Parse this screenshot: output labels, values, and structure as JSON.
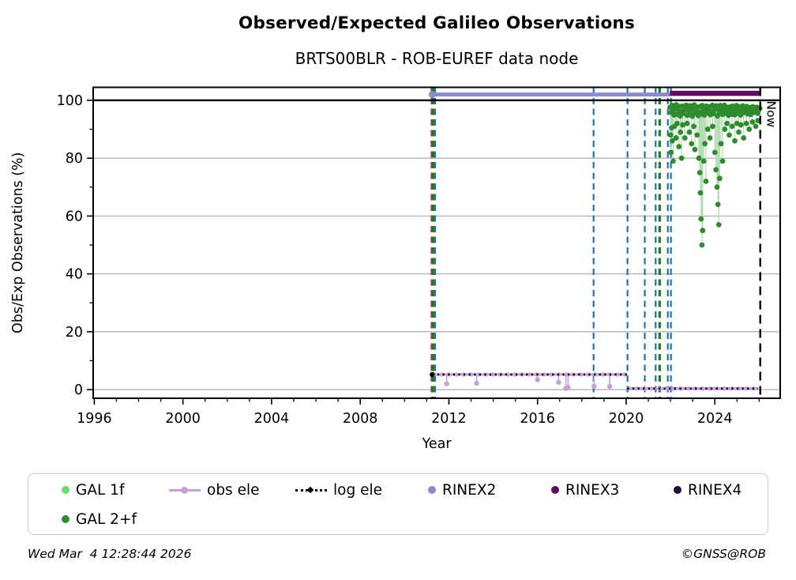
{
  "header": {
    "title": "Observed/Expected Galileo Observations",
    "subtitle": "BRTS00BLR - ROB-EUREF data node"
  },
  "chart_data": {
    "type": "line+scatter",
    "title": "Observed/Expected Galileo Observations",
    "subtitle": "BRTS00BLR - ROB-EUREF data node",
    "xlabel": "Year",
    "ylabel": "Obs/Exp Observations (%)",
    "xlim": [
      1995.95,
      2026.95
    ],
    "ylim": [
      -3,
      104.5
    ],
    "x_ticks": [
      1996,
      2000,
      2004,
      2008,
      2012,
      2016,
      2020,
      2024
    ],
    "x_minor_tick_step": 1,
    "y_ticks": [
      0,
      20,
      40,
      60,
      80,
      100
    ],
    "y_minor_ticks": [
      10,
      30,
      50,
      70,
      90
    ],
    "grid": "horizontal major gridlines, light gray, frame on all sides",
    "grid_color": "#b3b3b3",
    "reference_line": {
      "y": 100,
      "color": "#000000",
      "style": "solid"
    },
    "now_line": {
      "x": 2026.05,
      "label": "Now",
      "color": "#000000",
      "style": "dashed"
    },
    "event_lines": [
      {
        "x": 2011.22,
        "color": "#cc2222",
        "style": "dashed"
      },
      {
        "x": 2011.29,
        "color": "#1e7d1e",
        "style": "dashed"
      },
      {
        "x": 2011.38,
        "color": "#2070b4",
        "style": "dashed"
      },
      {
        "x": 2018.53,
        "color": "#2070b4",
        "style": "dashed"
      },
      {
        "x": 2020.06,
        "color": "#2070b4",
        "style": "dashed"
      },
      {
        "x": 2020.84,
        "color": "#2070b4",
        "style": "dashed"
      },
      {
        "x": 2021.33,
        "color": "#2070b4",
        "style": "dashed"
      },
      {
        "x": 2021.51,
        "color": "#1e7d1e",
        "style": "dashed"
      },
      {
        "x": 2021.88,
        "color": "#2070b4",
        "style": "dashed"
      },
      {
        "x": 2022.02,
        "color": "#2070b4",
        "style": "dashed"
      }
    ],
    "series": [
      {
        "name": "GAL 1f",
        "type": "scatter",
        "color": "#66dd66",
        "points": []
      },
      {
        "name": "GAL 2+f",
        "type": "scatter",
        "color": "#2e8b2e",
        "stem_color": "#b5dcb5",
        "band": {
          "x_start": 2021.98,
          "x_step": 0.0455,
          "y_values": [
            97.6,
            95.8,
            98.2,
            96.4,
            94.9,
            97.1,
            98.5,
            95.2,
            96.9,
            97.9,
            94.6,
            96.1,
            98.0,
            95.5,
            97.3,
            96.7,
            98.3,
            94.8,
            97.0,
            95.9,
            98.1,
            96.3,
            94.5,
            97.4,
            98.4,
            95.6,
            96.8,
            97.7,
            94.7,
            96.0,
            97.9,
            95.3,
            98.2,
            96.5,
            94.9,
            97.2,
            98.0,
            95.7,
            96.6,
            97.8,
            95.0,
            96.2,
            98.3,
            95.4,
            97.1,
            96.9,
            98.1,
            94.6,
            97.3,
            95.8,
            98.2,
            96.4,
            95.1,
            97.5,
            98.3,
            95.5,
            96.7,
            97.6,
            94.8,
            96.1,
            97.8,
            95.2,
            98.0,
            96.6,
            95.0,
            97.0,
            98.2,
            95.6,
            96.8,
            97.7,
            94.9,
            96.3,
            98.1,
            95.7,
            97.2,
            96.5,
            97.9,
            95.3,
            96.9,
            97.5,
            95.1,
            96.4,
            97.8,
            95.8,
            97.0,
            96.2,
            97.6,
            95.5,
            96.7,
            97.3
          ]
        },
        "points": [
          [
            2022.0,
            88
          ],
          [
            2022.02,
            82
          ],
          [
            2022.05,
            90.5
          ],
          [
            2022.08,
            86
          ],
          [
            2022.12,
            79
          ],
          [
            2022.18,
            91
          ],
          [
            2022.25,
            87
          ],
          [
            2022.3,
            92
          ],
          [
            2022.38,
            84
          ],
          [
            2022.45,
            89
          ],
          [
            2022.5,
            80
          ],
          [
            2022.55,
            91.5
          ],
          [
            2022.65,
            87
          ],
          [
            2022.75,
            92
          ],
          [
            2022.85,
            89
          ],
          [
            2022.95,
            85
          ],
          [
            2023.05,
            91
          ],
          [
            2023.1,
            83
          ],
          [
            2023.2,
            88
          ],
          [
            2023.28,
            80
          ],
          [
            2023.32,
            75
          ],
          [
            2023.35,
            68
          ],
          [
            2023.38,
            59
          ],
          [
            2023.42,
            50
          ],
          [
            2023.45,
            55
          ],
          [
            2023.5,
            79
          ],
          [
            2023.55,
            85
          ],
          [
            2023.6,
            72
          ],
          [
            2023.68,
            90
          ],
          [
            2023.78,
            87
          ],
          [
            2023.9,
            91
          ],
          [
            2024.0,
            82
          ],
          [
            2024.05,
            76
          ],
          [
            2024.1,
            70
          ],
          [
            2024.14,
            64
          ],
          [
            2024.18,
            57
          ],
          [
            2024.22,
            73
          ],
          [
            2024.28,
            85
          ],
          [
            2024.35,
            79
          ],
          [
            2024.45,
            90
          ],
          [
            2024.55,
            92
          ],
          [
            2024.65,
            88
          ],
          [
            2024.78,
            91
          ],
          [
            2024.9,
            86
          ],
          [
            2025.0,
            92
          ],
          [
            2025.08,
            89
          ],
          [
            2025.18,
            91.5
          ],
          [
            2025.3,
            87
          ],
          [
            2025.42,
            92
          ],
          [
            2025.55,
            90
          ],
          [
            2025.7,
            92.5
          ],
          [
            2025.85,
            91
          ],
          [
            2025.95,
            93
          ]
        ]
      },
      {
        "name": "obs ele",
        "type": "line",
        "color": "#c9a0dc",
        "width": 3.4,
        "marker_step": 0.33,
        "segments": [
          {
            "x0": 2011.25,
            "x1": 2020.05,
            "y": 5.2
          },
          {
            "x0": 2020.05,
            "x1": 2025.95,
            "y": 0.35
          }
        ],
        "dips": [
          [
            2011.9,
            2.0
          ],
          [
            2013.25,
            2.2
          ],
          [
            2016.0,
            3.4
          ],
          [
            2016.95,
            2.5
          ],
          [
            2017.28,
            0.4
          ],
          [
            2017.38,
            0.8
          ],
          [
            2018.55,
            1.2
          ],
          [
            2019.26,
            1.1
          ]
        ]
      },
      {
        "name": "log ele",
        "type": "dotted",
        "color": "#000000",
        "width": 2.6,
        "segments": [
          {
            "x0": 2011.25,
            "x1": 2020.05,
            "y": 5.2
          },
          {
            "x0": 2020.05,
            "x1": 2025.95,
            "y": 0.35
          }
        ]
      },
      {
        "name": "RINEX2",
        "type": "hline",
        "color": "#8a8acc",
        "width": 5,
        "y": 102.0,
        "span": [
          2011.25,
          2021.97
        ],
        "start_marker": true
      },
      {
        "name": "RINEX3",
        "type": "hline",
        "color": "#600a60",
        "width": 6.5,
        "y": 102.4,
        "span": [
          2021.97,
          2026.08
        ]
      },
      {
        "name": "RINEX4",
        "type": "hline",
        "color": "#240b36",
        "width": 6.5,
        "y": null,
        "span": null
      }
    ]
  },
  "legend": {
    "items": [
      {
        "label": "GAL 1f",
        "marker": "dot",
        "color": "#66dd66"
      },
      {
        "label": "obs ele",
        "marker": "line-dot",
        "color": "#c9a0dc"
      },
      {
        "label": "log ele",
        "marker": "dotted-line",
        "color": "#000000"
      },
      {
        "label": "RINEX2",
        "marker": "dot",
        "color": "#8a8acc"
      },
      {
        "label": "RINEX3",
        "marker": "dot",
        "color": "#600a60"
      },
      {
        "label": "RINEX4",
        "marker": "dot",
        "color": "#240b36"
      },
      {
        "label": "GAL 2+f",
        "marker": "dot",
        "color": "#2e8b2e"
      }
    ]
  },
  "footer": {
    "timestamp": "Wed Mar  4 12:28:44 2026",
    "credit": "©GNSS@ROB"
  }
}
